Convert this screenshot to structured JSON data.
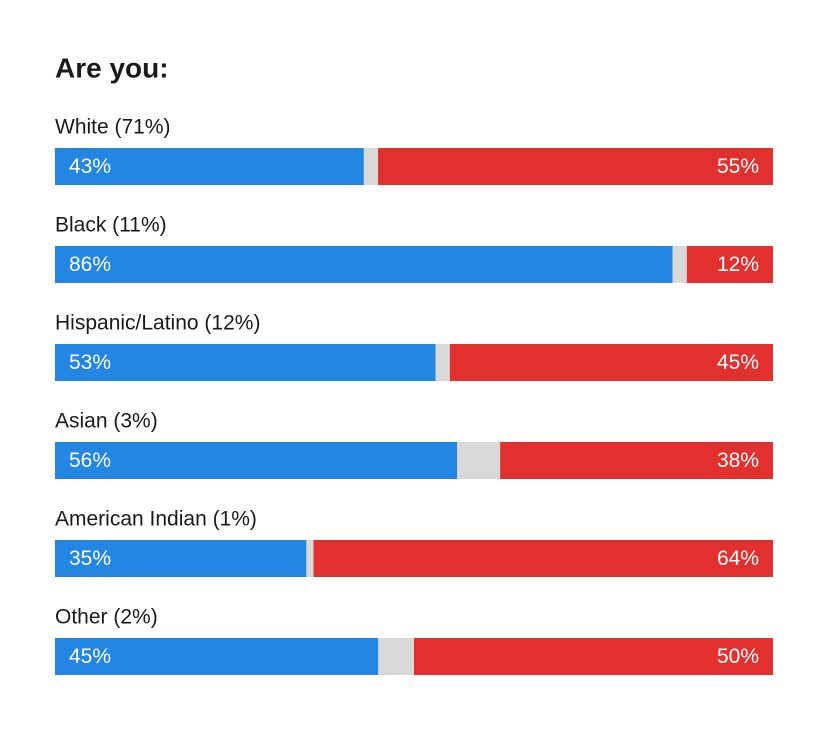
{
  "chart_data": {
    "type": "bar",
    "orientation": "horizontal",
    "stacked": true,
    "title": "Are you:",
    "categories": [
      "White (71%)",
      "Black (11%)",
      "Hispanic/Latino (12%)",
      "Asian (3%)",
      "American Indian (1%)",
      "Other (2%)"
    ],
    "series": [
      {
        "color": "#2386e2",
        "values": [
          43,
          86,
          53,
          56,
          35,
          45
        ],
        "value_labels": [
          "43%",
          "86%",
          "53%",
          "56%",
          "35%",
          "45%"
        ]
      },
      {
        "color": "#e1302d",
        "values": [
          55,
          12,
          45,
          38,
          64,
          50
        ],
        "value_labels": [
          "55%",
          "12%",
          "45%",
          "38%",
          "64%",
          "50%"
        ]
      }
    ],
    "xlim": [
      0,
      100
    ],
    "track_color": "#d9d9d9"
  }
}
